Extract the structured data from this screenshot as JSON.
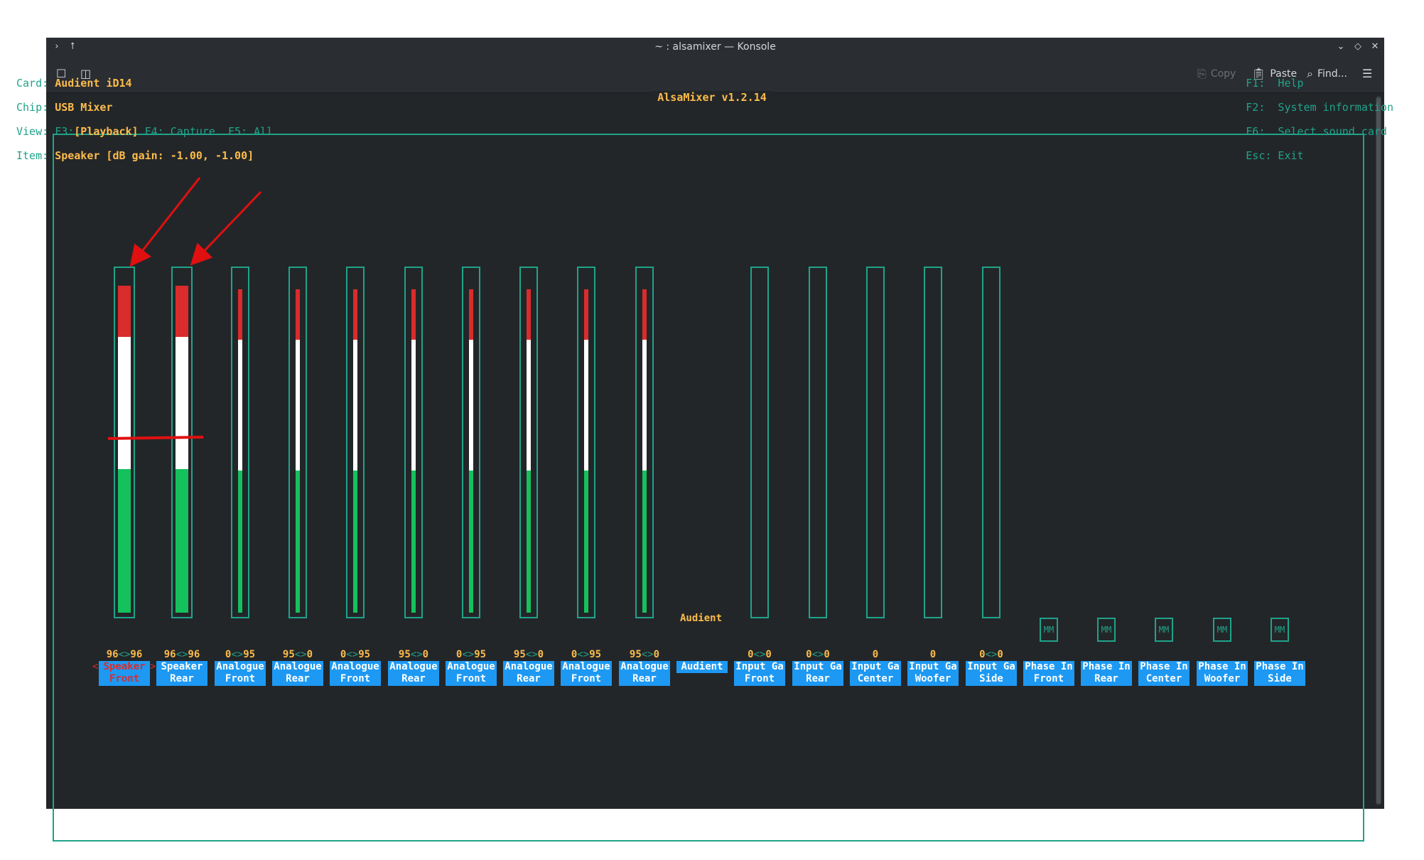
{
  "window": {
    "title": "~ : alsamixer — Konsole",
    "titlebar_left_icons": [
      "terminal-icon",
      "pin-icon"
    ],
    "titlebar_right_icons": [
      "minimize-icon",
      "maximize-icon",
      "close-icon"
    ]
  },
  "toolbar": {
    "copy_label": "Copy",
    "paste_label": "Paste",
    "find_label": "Find..."
  },
  "alsamixer": {
    "title": "AlsaMixer v1.2.14",
    "card_label": "Card:",
    "card_value": "Audient iD14",
    "chip_label": "Chip:",
    "chip_value": "USB Mixer",
    "view_label": "View:",
    "view_f3": "F3:",
    "view_playback": "[Playback]",
    "view_rest": " F4: Capture  F5: All",
    "item_label": "Item:",
    "item_value": "Speaker [dB gain: -1.00, -1.00]",
    "help": [
      "F1:  Help",
      "F2:  System information",
      "F6:  Select sound card",
      "Esc: Exit"
    ],
    "audient_label": "Audient",
    "controls": [
      {
        "left": "96",
        "arrow": "<>",
        "right": "96",
        "line1": "Speaker",
        "line2": "Front",
        "level": 0.96,
        "wide": true
      },
      {
        "left": "96",
        "arrow": "<>",
        "right": "96",
        "line1": "Speaker",
        "line2": "Rear",
        "level": 0.96,
        "wide": true
      },
      {
        "left": "0",
        "arrow": "<>",
        "right": "95",
        "line1": "Analogue",
        "line2": "Front",
        "level": 0.95
      },
      {
        "left": "95",
        "arrow": "<>",
        "right": "0",
        "line1": "Analogue",
        "line2": "Rear",
        "level": 0.95
      },
      {
        "left": "0",
        "arrow": "<>",
        "right": "95",
        "line1": "Analogue",
        "line2": "Front",
        "level": 0.95
      },
      {
        "left": "95",
        "arrow": "<>",
        "right": "0",
        "line1": "Analogue",
        "line2": "Rear",
        "level": 0.95
      },
      {
        "left": "0",
        "arrow": "<>",
        "right": "95",
        "line1": "Analogue",
        "line2": "Front",
        "level": 0.95
      },
      {
        "left": "95",
        "arrow": "<>",
        "right": "0",
        "line1": "Analogue",
        "line2": "Rear",
        "level": 0.95
      },
      {
        "left": "0",
        "arrow": "<>",
        "right": "95",
        "line1": "Analogue",
        "line2": "Front",
        "level": 0.95
      },
      {
        "left": "95",
        "arrow": "<>",
        "right": "0",
        "line1": "Analogue",
        "line2": "Rear",
        "level": 0.95
      },
      {
        "left": "",
        "arrow": "",
        "right": "",
        "line1": "Audient",
        "line2": "",
        "level": null
      },
      {
        "left": "0",
        "arrow": "<>",
        "right": "0",
        "line1": "Input Ga",
        "line2": "Front",
        "level": 0
      },
      {
        "left": "0",
        "arrow": "<>",
        "right": "0",
        "line1": "Input Ga",
        "line2": "Rear",
        "level": 0
      },
      {
        "left": "0",
        "arrow": "",
        "right": "",
        "line1": "Input Ga",
        "line2": "Center",
        "level": 0
      },
      {
        "left": "0",
        "arrow": "",
        "right": "",
        "line1": "Input Ga",
        "line2": "Woofer",
        "level": 0
      },
      {
        "left": "0",
        "arrow": "<>",
        "right": "0",
        "line1": "Input Ga",
        "line2": "Side",
        "level": 0
      },
      {
        "left": "",
        "arrow": "",
        "right": "",
        "line1": "Phase In",
        "line2": "Front",
        "mm": "MM"
      },
      {
        "left": "",
        "arrow": "",
        "right": "",
        "line1": "Phase In",
        "line2": "Rear",
        "mm": "MM"
      },
      {
        "left": "",
        "arrow": "",
        "right": "",
        "line1": "Phase In",
        "line2": "Center",
        "mm": "MM"
      },
      {
        "left": "",
        "arrow": "",
        "right": "",
        "line1": "Phase In",
        "line2": "Woofer",
        "mm": "MM"
      },
      {
        "left": "",
        "arrow": "",
        "right": "",
        "line1": "Phase In",
        "line2": "Side",
        "mm": "MM"
      }
    ],
    "selected_index": 0
  },
  "colors": {
    "accent_cyan": "#1fa38a",
    "value_yellow": "#fdbc4b",
    "label_blue": "#1d99f3",
    "meter_red": "#da2c2c",
    "meter_green": "#15c15d",
    "annotation_red": "#e01010"
  }
}
